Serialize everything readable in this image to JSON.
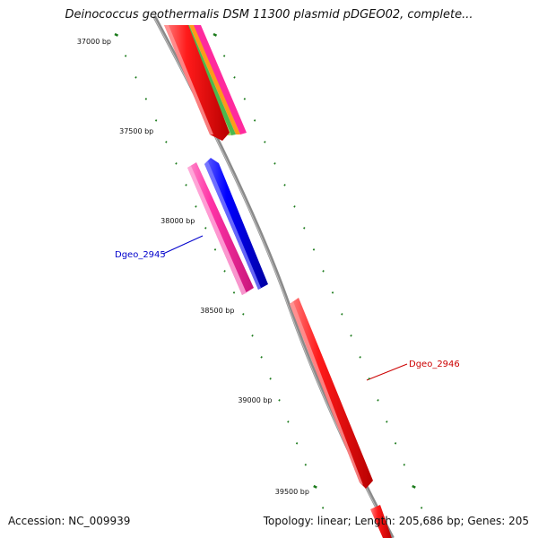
{
  "title": "Deinococcus geothermalis DSM 11300 plasmid pDGEO02, complete...",
  "footer": {
    "accession": "Accession: NC_009939",
    "summary": "Topology: linear; Length: 205,686 bp; Genes: 205"
  },
  "ticks": [
    {
      "bp": 37000,
      "label": "37000 bp"
    },
    {
      "bp": 37500,
      "label": "37500 bp"
    },
    {
      "bp": 38000,
      "label": "38000 bp"
    },
    {
      "bp": 38500,
      "label": "38500 bp"
    },
    {
      "bp": 39000,
      "label": "39000 bp"
    },
    {
      "bp": 39500,
      "label": "39500 bp"
    }
  ],
  "gene_labels": [
    {
      "name": "Dgeo_2945",
      "color": "#0000cc"
    },
    {
      "name": "Dgeo_2946",
      "color": "#cc0000"
    }
  ],
  "colors": {
    "backbone": "#888888",
    "ticks": "#1a7a1a",
    "red": "#ff0000",
    "blue": "#0000ff",
    "magenta": "#ff2a9d"
  }
}
